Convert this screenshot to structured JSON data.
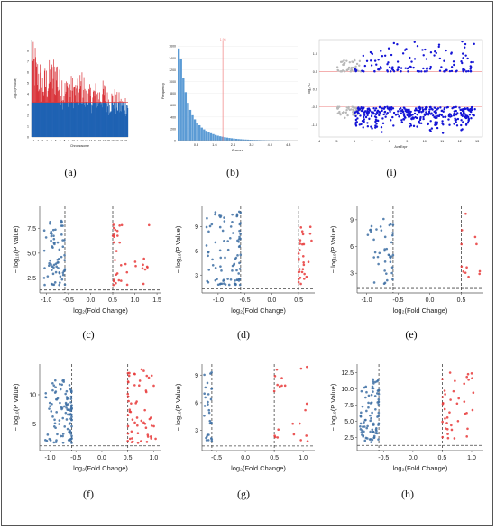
{
  "captions": [
    "(a)",
    "(b)",
    "(i)",
    "(c)",
    "(d)",
    "(e)",
    "(f)",
    "(g)",
    "(h)"
  ],
  "colors": {
    "manhattan_low": "#1f62b3",
    "manhattan_high": "#d9343a",
    "hist_bar": "#5b9bd5",
    "hist_line": "#f08080",
    "ma_up_down": "#1515d6",
    "ma_ns": "#b8b8b8",
    "ma_line": "#ee7f7f",
    "volcano_down": "#3d6fa3",
    "volcano_up": "#e8393a",
    "volcano_threshold": "#444444"
  },
  "chart_data": [
    {
      "id": "a",
      "type": "scatter",
      "subtype": "manhattan",
      "ylabel": "-log10(P value)",
      "xlabel": "Chromosome",
      "x_ticks": [
        "1",
        "2",
        "3",
        "4",
        "5",
        "6",
        "7",
        "8",
        "9",
        "10",
        "11",
        "12",
        "13",
        "14",
        "15",
        "16",
        "17",
        "18",
        "19",
        "20",
        "21",
        "22"
      ],
      "y_ticks": [
        0,
        1,
        2,
        3,
        4,
        5,
        6,
        7,
        8
      ],
      "ylim": [
        0,
        9
      ],
      "threshold": 3.2,
      "chromosome_peak_heights": [
        8.8,
        7.6,
        6.4,
        6.8,
        7.2,
        7.8,
        6.4,
        5.6,
        6.0,
        5.8,
        5.4,
        6.2,
        4.8,
        4.9,
        5.2,
        5.0,
        5.3,
        4.4,
        4.6,
        4.2,
        3.9,
        4.1
      ]
    },
    {
      "id": "b",
      "type": "bar",
      "subtype": "histogram",
      "ylabel": "Frequency",
      "xlabel": "Z-score",
      "x_ticks": [
        0.8,
        1.6,
        2.4,
        3.2,
        4.0,
        4.8
      ],
      "y_ticks": [
        0,
        200,
        400,
        600,
        800,
        1000,
        1200,
        1400,
        1600
      ],
      "xlim": [
        0.0,
        5.2
      ],
      "ylim": [
        0,
        1680
      ],
      "bin_start": 0.0,
      "bin_width": 0.1,
      "values": [
        1560,
        1380,
        1060,
        820,
        640,
        520,
        430,
        360,
        300,
        260,
        220,
        190,
        165,
        145,
        125,
        110,
        96,
        84,
        74,
        66,
        58,
        51,
        45,
        40,
        35,
        31,
        27,
        24,
        21,
        19,
        17,
        15,
        13,
        12,
        11,
        10,
        9,
        8,
        7,
        6,
        5,
        5,
        4,
        4,
        3,
        3,
        2,
        2
      ],
      "vline": 1.96,
      "vline_label": "1.96"
    },
    {
      "id": "i",
      "type": "scatter",
      "subtype": "ma-plot",
      "ylabel": "log₂FC",
      "xlabel": "AveExpr",
      "x_ticks": [
        4,
        5,
        6,
        7,
        8,
        9,
        10,
        11,
        12,
        13
      ],
      "y_ticks": [
        -1.0,
        -0.5,
        0.0,
        0.5,
        1.0
      ],
      "xlim": [
        4,
        13.3
      ],
      "ylim": [
        -1.35,
        1.4
      ],
      "hlines": [
        0.5,
        -0.5
      ],
      "up_range": [
        0.5,
        1.35
      ],
      "down_range": [
        -1.3,
        -0.5
      ],
      "ns_xrange": [
        5.0,
        6.4
      ],
      "sig_xrange": [
        6.0,
        12.9
      ],
      "n_up": 130,
      "n_down": 360,
      "n_ns": 90
    },
    {
      "id": "c",
      "type": "scatter",
      "subtype": "volcano",
      "ylabel": "− log₁₀(P Value)",
      "xlabel": "log₂(Fold Change)",
      "x_ticks": [
        "-1.0",
        "-0.5",
        "0.0",
        "0.5",
        "1.0",
        "1.5"
      ],
      "x_tick_values": [
        -1.0,
        -0.5,
        0.0,
        0.5,
        1.0,
        1.5
      ],
      "y_ticks": [
        "2.5",
        "5.0",
        "7.5"
      ],
      "y_tick_values": [
        2.5,
        5.0,
        7.5
      ],
      "xlim": [
        -1.15,
        1.6
      ],
      "ylim": [
        1.0,
        9.7
      ],
      "vlines": [
        -0.58,
        0.5
      ],
      "hline": 1.3,
      "down": {
        "xmin": -1.05,
        "xmax": -0.58,
        "ymin": 1.8,
        "ymax": 9.0,
        "n": 70
      },
      "up": {
        "xmin": 0.5,
        "xmax": 1.35,
        "ymin": 1.8,
        "ymax": 9.0,
        "n": 36
      }
    },
    {
      "id": "d",
      "type": "scatter",
      "subtype": "volcano",
      "ylabel": "− log₁₀(P Value)",
      "xlabel": "log₂(Fold Change)",
      "x_ticks": [
        "-1.0",
        "-0.5",
        "0.0",
        "0.5"
      ],
      "x_tick_values": [
        -1.0,
        -0.5,
        0.0,
        0.5
      ],
      "y_ticks": [
        "3",
        "6",
        "9"
      ],
      "y_tick_values": [
        3,
        6,
        9
      ],
      "xlim": [
        -1.3,
        0.8
      ],
      "ylim": [
        0.8,
        11.5
      ],
      "vlines": [
        -0.58,
        0.5
      ],
      "hline": 1.3,
      "down": {
        "xmin": -1.25,
        "xmax": -0.58,
        "ymin": 1.8,
        "ymax": 10.9,
        "n": 90
      },
      "up": {
        "xmin": 0.5,
        "xmax": 0.75,
        "ymin": 1.8,
        "ymax": 9.5,
        "n": 30
      }
    },
    {
      "id": "e",
      "type": "scatter",
      "subtype": "volcano",
      "ylabel": "− log₁₀(P Value)",
      "xlabel": "log₂(Fold Change)",
      "x_ticks": [
        "-1.0",
        "-0.5",
        "0.0",
        "0.5"
      ],
      "x_tick_values": [
        -1.0,
        -0.5,
        0.0,
        0.5
      ],
      "y_ticks": [
        "3",
        "6",
        "9"
      ],
      "y_tick_values": [
        3,
        6,
        9
      ],
      "xlim": [
        -1.15,
        0.85
      ],
      "ylim": [
        0.8,
        10.5
      ],
      "vlines": [
        -0.58,
        0.5
      ],
      "hline": 1.3,
      "down": {
        "xmin": -1.0,
        "xmax": -0.58,
        "ymin": 1.8,
        "ymax": 9.7,
        "n": 42
      },
      "up": {
        "xmin": 0.5,
        "xmax": 0.8,
        "ymin": 1.8,
        "ymax": 9.7,
        "n": 12
      }
    },
    {
      "id": "f",
      "type": "scatter",
      "subtype": "volcano",
      "ylabel": "− log₁₀(P Value)",
      "xlabel": "log₂(Fold Change)",
      "x_ticks": [
        "-1.0",
        "-0.5",
        "0.0",
        "0.5",
        "1.0"
      ],
      "x_tick_values": [
        -1.0,
        -0.5,
        0.0,
        0.5,
        1.0
      ],
      "y_ticks": [
        "5",
        "10"
      ],
      "y_tick_values": [
        5,
        10
      ],
      "xlim": [
        -1.2,
        1.15
      ],
      "ylim": [
        0.5,
        15.2
      ],
      "vlines": [
        -0.58,
        0.5
      ],
      "hline": 1.3,
      "down": {
        "xmin": -1.1,
        "xmax": -0.58,
        "ymin": 1.8,
        "ymax": 12.5,
        "n": 110
      },
      "up": {
        "xmin": 0.5,
        "xmax": 1.05,
        "ymin": 1.8,
        "ymax": 14.3,
        "n": 60
      }
    },
    {
      "id": "g",
      "type": "scatter",
      "subtype": "volcano",
      "ylabel": "− log₁₀(P Value)",
      "xlabel": "log₂(Fold Change)",
      "x_ticks": [
        "-0.5",
        "0.0",
        "0.5",
        "1.0"
      ],
      "x_tick_values": [
        -0.5,
        0.0,
        0.5,
        1.0
      ],
      "y_ticks": [
        "3",
        "6",
        "9"
      ],
      "y_tick_values": [
        3,
        6,
        9
      ],
      "xlim": [
        -0.75,
        1.2
      ],
      "ylim": [
        0.8,
        10.2
      ],
      "vlines": [
        -0.58,
        0.5
      ],
      "hline": 1.3,
      "down": {
        "xmin": -0.72,
        "xmax": -0.58,
        "ymin": 1.8,
        "ymax": 9.5,
        "n": 30
      },
      "up": {
        "xmin": 0.5,
        "xmax": 1.1,
        "ymin": 1.8,
        "ymax": 10.0,
        "n": 22
      }
    },
    {
      "id": "h",
      "type": "scatter",
      "subtype": "volcano",
      "ylabel": "− log₁₀(P Value)",
      "xlabel": "log₂(Fold Change)",
      "x_ticks": [
        "-0.5",
        "0.0",
        "0.5",
        "1.0"
      ],
      "x_tick_values": [
        -0.5,
        0.0,
        0.5,
        1.0
      ],
      "y_ticks": [
        "2.5",
        "5.0",
        "7.5",
        "10.0",
        "12.5"
      ],
      "y_tick_values": [
        2.5,
        5.0,
        7.5,
        10.0,
        12.5
      ],
      "xlim": [
        -0.95,
        1.2
      ],
      "ylim": [
        0.5,
        13.8
      ],
      "vlines": [
        -0.58,
        0.5
      ],
      "hline": 1.3,
      "down": {
        "xmin": -0.9,
        "xmax": -0.58,
        "ymin": 1.8,
        "ymax": 11.5,
        "n": 85
      },
      "up": {
        "xmin": 0.5,
        "xmax": 1.05,
        "ymin": 1.8,
        "ymax": 12.8,
        "n": 40
      }
    }
  ]
}
